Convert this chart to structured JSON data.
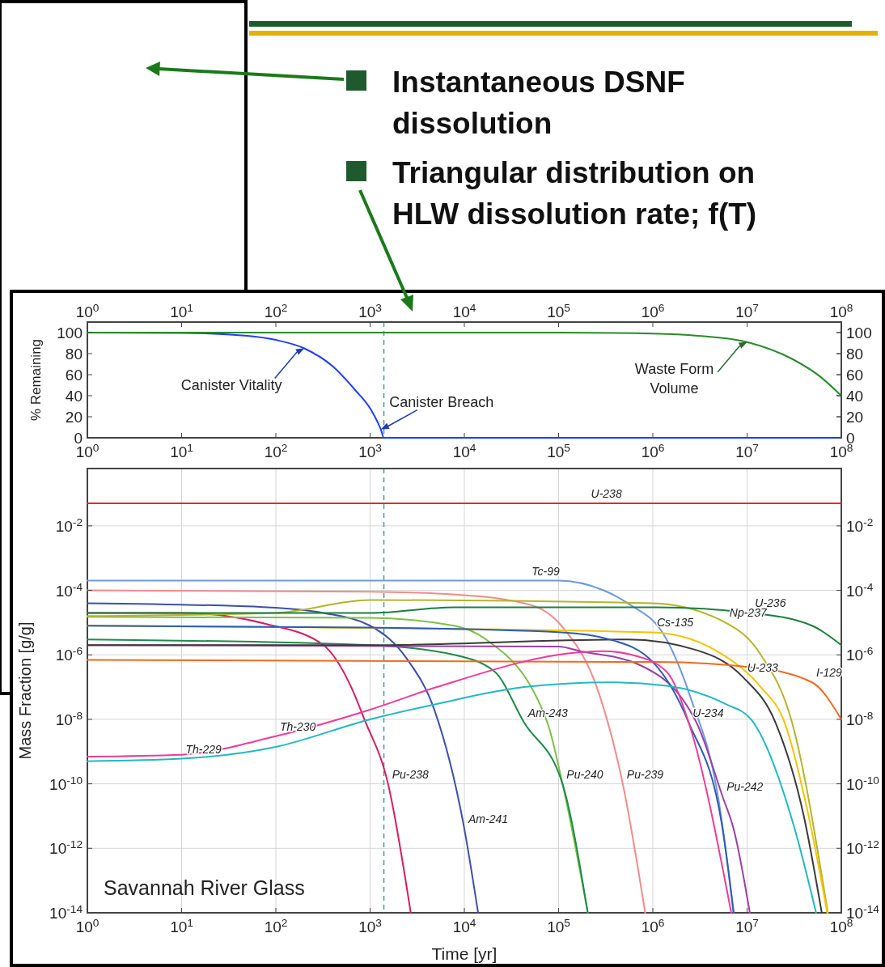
{
  "chart_data": [
    {
      "type": "other",
      "annotations": [
        "Instantaneous DSNF dissolution",
        "Triangular distribution on HLW dissolution rate; f(T)"
      ]
    },
    {
      "type": "line",
      "ylabel": "% Remaining",
      "log": "x",
      "grid": false,
      "marker": "none",
      "line_style": "solid",
      "xlim": [
        1,
        100000000
      ],
      "xticks": [
        {
          "value": 1,
          "label": "10$^{0}$"
        },
        {
          "value": 10,
          "label": "10$^{1}$"
        },
        {
          "value": 100,
          "label": "10$^{2}$"
        },
        {
          "value": 1000,
          "label": "10$^{3}$"
        },
        {
          "value": 10000,
          "label": "10$^{4}$"
        },
        {
          "value": 100000,
          "label": "10$^{5}$"
        },
        {
          "value": 1000000,
          "label": "10$^{6}$"
        },
        {
          "value": 10000000,
          "label": "10$^{7}$"
        },
        {
          "value": 100000000,
          "label": "10$^{8}$"
        }
      ],
      "ylim": [
        0,
        110
      ],
      "yticks": [
        0,
        20,
        40,
        60,
        80,
        100
      ],
      "y2lim": [
        0,
        110
      ],
      "y2ticks": [
        0,
        20,
        40,
        60,
        80,
        100
      ],
      "series": [
        {
          "color": "#1f3cff",
          "x": [
            1,
            10,
            50,
            100,
            200,
            400,
            700,
            1000,
            1200,
            1300,
            1400,
            100000000
          ],
          "values": [
            100,
            99.7,
            97,
            93,
            85,
            68,
            45,
            28,
            15,
            8,
            0,
            0
          ]
        },
        {
          "color": "#2a8a2a",
          "x": [
            1,
            100000,
            1000000,
            3000000,
            10000000,
            30000000,
            60000000,
            100000000
          ],
          "values": [
            100,
            100,
            99,
            97,
            91,
            75,
            58,
            40
          ]
        }
      ],
      "ref_lines": [
        {
          "axis": "x",
          "value": 1400,
          "color": "#4a9a9a",
          "line_style": "dashed"
        }
      ],
      "annotations": [
        {
          "text": "Canister Vitality",
          "x": 200,
          "y": 85
        },
        {
          "text": "Canister Breach",
          "x": 1300,
          "y": 8
        },
        {
          "text": "Waste Form\nVolume",
          "x": 10000000,
          "y": 91
        }
      ]
    },
    {
      "type": "line",
      "xlabel": "Time [yr]",
      "ylabel": "Mass Fraction [g/g]",
      "log": "xy",
      "grid": true,
      "marker": "none",
      "line_style": "solid",
      "xlim": [
        1,
        100000000
      ],
      "xticks": [
        {
          "value": 1,
          "label": "10$^{0}$"
        },
        {
          "value": 10,
          "label": "10$^{1}$"
        },
        {
          "value": 100,
          "label": "10$^{2}$"
        },
        {
          "value": 1000,
          "label": "10$^{3}$"
        },
        {
          "value": 10000,
          "label": "10$^{4}$"
        },
        {
          "value": 100000,
          "label": "10$^{5}$"
        },
        {
          "value": 1000000,
          "label": "10$^{6}$"
        },
        {
          "value": 10000000,
          "label": "10$^{7}$"
        },
        {
          "value": 100000000,
          "label": "10$^{8}$"
        }
      ],
      "ylim": [
        1e-14,
        0.6
      ],
      "yticks": [
        {
          "value": 1e-14,
          "label": "10$^{-14}$"
        },
        {
          "value": 1e-12,
          "label": "10$^{-12}$"
        },
        {
          "value": 1e-10,
          "label": "10$^{-10}$"
        },
        {
          "value": 1e-08,
          "label": "10$^{-8}$"
        },
        {
          "value": 1e-06,
          "label": "10$^{-6}$"
        },
        {
          "value": 0.0001,
          "label": "10$^{-4}$"
        },
        {
          "value": 0.01,
          "label": "10$^{-2}$"
        }
      ],
      "series": [
        {
          "color": "#e8262b",
          "x": [
            1,
            100000000
          ],
          "values": [
            0.05,
            0.05
          ]
        },
        {
          "color": "#7099d9",
          "x": [
            1,
            1000,
            100000,
            300000,
            540000,
            1400000,
            2500000,
            5000000,
            7200000
          ],
          "values": [
            0.0002,
            0.0002,
            0.0002,
            0.0001,
            4e-05,
            3e-06,
            5e-08,
            3e-11,
            1e-14
          ]
        },
        {
          "color": "#f28b8b",
          "x": [
            1,
            1000,
            5100,
            43000,
            107000,
            270000,
            480000,
            830000
          ],
          "values": [
            0.0001,
            9e-05,
            8e-05,
            4e-05,
            8e-06,
            6e-08,
            1e-10,
            1e-14
          ]
        },
        {
          "color": "#3c50a8",
          "x": [
            1,
            80,
            320,
            1000,
            2500,
            4800,
            10000,
            14000
          ],
          "values": [
            4e-05,
            3e-05,
            2e-05,
            8e-06,
            7e-07,
            2e-08,
            4e-12,
            1e-14
          ]
        },
        {
          "color": "#d41c64",
          "x": [
            1,
            10,
            80,
            320,
            630,
            870,
            1550,
            2700
          ],
          "values": [
            2e-05,
            2e-05,
            9e-06,
            2e-06,
            1e-07,
            1e-08,
            1e-10,
            1e-14
          ]
        },
        {
          "color": "#7cc04a",
          "x": [
            1,
            1000,
            7800,
            17000,
            76000,
            110000,
            204000
          ],
          "values": [
            1.5e-05,
            1.4e-05,
            8e-06,
            3e-06,
            8e-09,
            1e-10,
            1e-14
          ]
        },
        {
          "color": "#1e8a4c",
          "x": [
            1,
            1000,
            7800,
            21000,
            43000,
            110000,
            204000
          ],
          "values": [
            3e-06,
            2e-06,
            1e-06,
            3e-07,
            8e-09,
            1e-10,
            1e-14
          ]
        },
        {
          "color": "#b4b42c",
          "x": [
            1,
            100,
            1000,
            1000000,
            5900000,
            14000000,
            30000000,
            72000000
          ],
          "values": [
            1.6e-05,
            2e-05,
            5e-05,
            4e-05,
            1e-05,
            1e-06,
            8e-09,
            1e-14
          ]
        },
        {
          "color": "#1a8040",
          "x": [
            1,
            1000,
            7800,
            1100000,
            11000000,
            49000000,
            100000000
          ],
          "values": [
            2e-05,
            2e-05,
            3e-05,
            3e-05,
            2e-05,
            8e-06,
            2e-06
          ]
        },
        {
          "color": "#f5c400",
          "x": [
            1,
            1000000,
            5900000,
            14000000,
            25000000,
            45000000,
            71000000
          ],
          "values": [
            8e-06,
            5e-06,
            9e-07,
            1e-07,
            8e-09,
            1e-11,
            1e-14
          ]
        },
        {
          "color": "#9a40a4",
          "x": [
            1,
            100000,
            170000,
            710000,
            2900000,
            5500000,
            7200000,
            10700000
          ],
          "values": [
            2e-06,
            1.8e-06,
            1.3e-06,
            5e-07,
            8e-09,
            4e-11,
            4e-12,
            1e-14
          ]
        },
        {
          "color": "#3a3a3a",
          "x": [
            1,
            1000,
            540000,
            2900000,
            9100000,
            20000000,
            40000000,
            62000000
          ],
          "values": [
            2e-06,
            2e-06,
            3e-06,
            1.4e-06,
            2e-07,
            8e-09,
            1e-11,
            1e-14
          ]
        },
        {
          "color": "#f06a1e",
          "x": [
            1,
            1100000,
            12000000,
            49000000,
            100000000
          ],
          "values": [
            7e-07,
            6e-07,
            4e-07,
            1.4e-07,
            1e-08
          ]
        },
        {
          "color": "#2d5bb5",
          "x": [
            1,
            1000,
            107000,
            350000,
            1000000,
            2400000,
            5500000,
            7200000
          ],
          "values": [
            8e-06,
            7e-06,
            5e-06,
            3e-06,
            6e-07,
            8e-09,
            4e-12,
            1e-14
          ]
        },
        {
          "color": "#ee3c96",
          "x": [
            1,
            10,
            100,
            1000,
            5100,
            170000,
            300000,
            600000,
            1400000,
            2400000,
            6800000
          ],
          "values": [
            7e-10,
            8e-10,
            3e-09,
            2e-08,
            1e-07,
            1.2e-06,
            1.3e-06,
            1e-06,
            3e-07,
            8e-09,
            1e-14
          ]
        },
        {
          "color": "#22b8c2",
          "x": [
            1,
            10,
            100,
            1000,
            5100,
            43000,
            350000,
            1400000,
            5900000,
            11000000,
            32000000,
            54000000
          ],
          "values": [
            5e-10,
            6e-10,
            1.4e-09,
            1e-08,
            3e-08,
            1e-07,
            1.4e-07,
            1.1e-07,
            3e-08,
            1e-08,
            4e-12,
            1e-14
          ]
        }
      ],
      "ref_lines": [
        {
          "axis": "x",
          "value": 1400,
          "color": "#4a9a9a",
          "line_style": "dashed"
        }
      ],
      "annotations": [
        {
          "text": "U-238",
          "x": 200000,
          "y": 0.05
        },
        {
          "text": "Tc-99",
          "x": 47000,
          "y": 0.0002
        },
        {
          "text": "U-236",
          "x": 11000000,
          "y": 2e-05
        },
        {
          "text": "Cs-135",
          "x": 1000000,
          "y": 5e-06
        },
        {
          "text": "Np-237",
          "x": 5900000,
          "y": 1e-05
        },
        {
          "text": "I-129",
          "x": 49000000,
          "y": 1.4e-07
        },
        {
          "text": "U-233",
          "x": 9100000,
          "y": 2e-07
        },
        {
          "text": "U-234",
          "x": 2400000,
          "y": 8e-09
        },
        {
          "text": "Th-230",
          "x": 100,
          "y": 3e-09
        },
        {
          "text": "Th-229",
          "x": 10,
          "y": 6e-10
        },
        {
          "text": "Pu-238",
          "x": 1550,
          "y": 1e-10
        },
        {
          "text": "Am-241",
          "x": 10000,
          "y": 4e-12
        },
        {
          "text": "Am-243",
          "x": 43000,
          "y": 8e-09
        },
        {
          "text": "Pu-240",
          "x": 110000,
          "y": 1e-10
        },
        {
          "text": "Pu-239",
          "x": 480000,
          "y": 1e-10
        },
        {
          "text": "Pu-242",
          "x": 5500000,
          "y": 4e-11
        },
        "Savannah River Glass"
      ]
    }
  ]
}
